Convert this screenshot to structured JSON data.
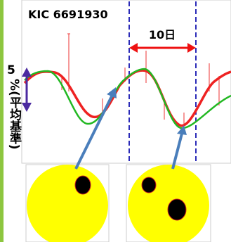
{
  "title": "KIC 6691930",
  "period_label": "10日",
  "y_axis": {
    "scale": "5",
    "unit": "%(平均基準)"
  }
}
